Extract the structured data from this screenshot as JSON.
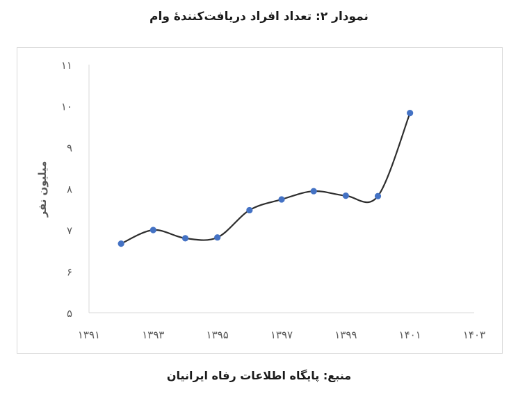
{
  "title": "نمودار ۲: تعداد افراد دریافت‌کنندۀ وام",
  "source": "منبع: پایگاه اطلاعات رفاه ایرانیان",
  "chart_data": {
    "type": "line",
    "ylabel": "میلیون نفر",
    "xlim": [
      1391,
      1403
    ],
    "ylim": [
      5,
      11
    ],
    "x_ticks": [
      1391,
      1393,
      1395,
      1397,
      1399,
      1401,
      1403
    ],
    "x_tick_labels": [
      "۱۳۹۱",
      "۱۳۹۳",
      "۱۳۹۵",
      "۱۳۹۷",
      "۱۳۹۹",
      "۱۴۰۱",
      "۱۴۰۳"
    ],
    "y_ticks": [
      5,
      6,
      7,
      8,
      9,
      10,
      11
    ],
    "y_tick_labels": [
      "۵",
      "۶",
      "۷",
      "۸",
      "۹",
      "۱۰",
      "۱۱"
    ],
    "grid": false,
    "line_color": "#2d2d2d",
    "marker_color": "#4472c4",
    "axis_color": "#d9d9d9",
    "series": [
      {
        "x": [
          1392,
          1393,
          1394,
          1395,
          1396,
          1397,
          1398,
          1399,
          1400,
          1401
        ],
        "y": [
          6.67,
          7.0,
          6.8,
          6.82,
          7.48,
          7.74,
          7.94,
          7.83,
          7.82,
          9.83
        ]
      }
    ]
  }
}
